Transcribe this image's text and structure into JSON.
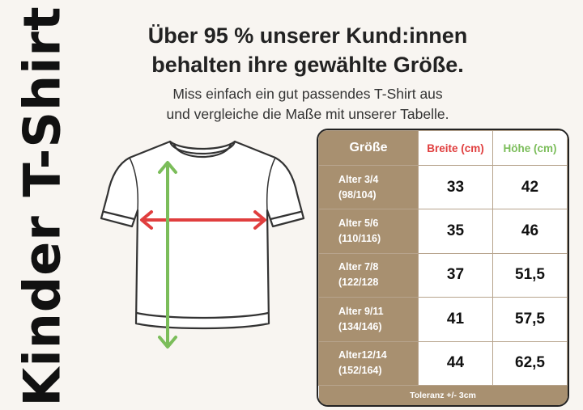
{
  "vertical_title": "Kinder T-Shirt",
  "headline": [
    "Über 95 % unserer Kund:innen",
    "behalten ihre gewählte Größe."
  ],
  "subline": [
    "Miss einfach ein gut passendes T-Shirt aus",
    "und vergleiche die Maße mit unserer Tabelle."
  ],
  "colors": {
    "brown": "#a89070",
    "width_red": "#e03e3e",
    "height_green": "#7bbd5a"
  },
  "table": {
    "headers": {
      "size": "Größe",
      "width": "Breite (cm)",
      "height": "Höhe (cm)"
    },
    "rows": [
      {
        "age": "Alter 3/4",
        "size": "(98/104)",
        "width": "33",
        "height": "42"
      },
      {
        "age": "Alter 5/6",
        "size": "(110/116)",
        "width": "35",
        "height": "46"
      },
      {
        "age": "Alter 7/8",
        "size": "(122/128",
        "width": "37",
        "height": "51,5"
      },
      {
        "age": "Alter 9/11",
        "size": "(134/146)",
        "width": "41",
        "height": "57,5"
      },
      {
        "age": "Alter12/14",
        "size": "(152/164)",
        "width": "44",
        "height": "62,5"
      }
    ],
    "tolerance": "Toleranz +/- 3cm"
  }
}
